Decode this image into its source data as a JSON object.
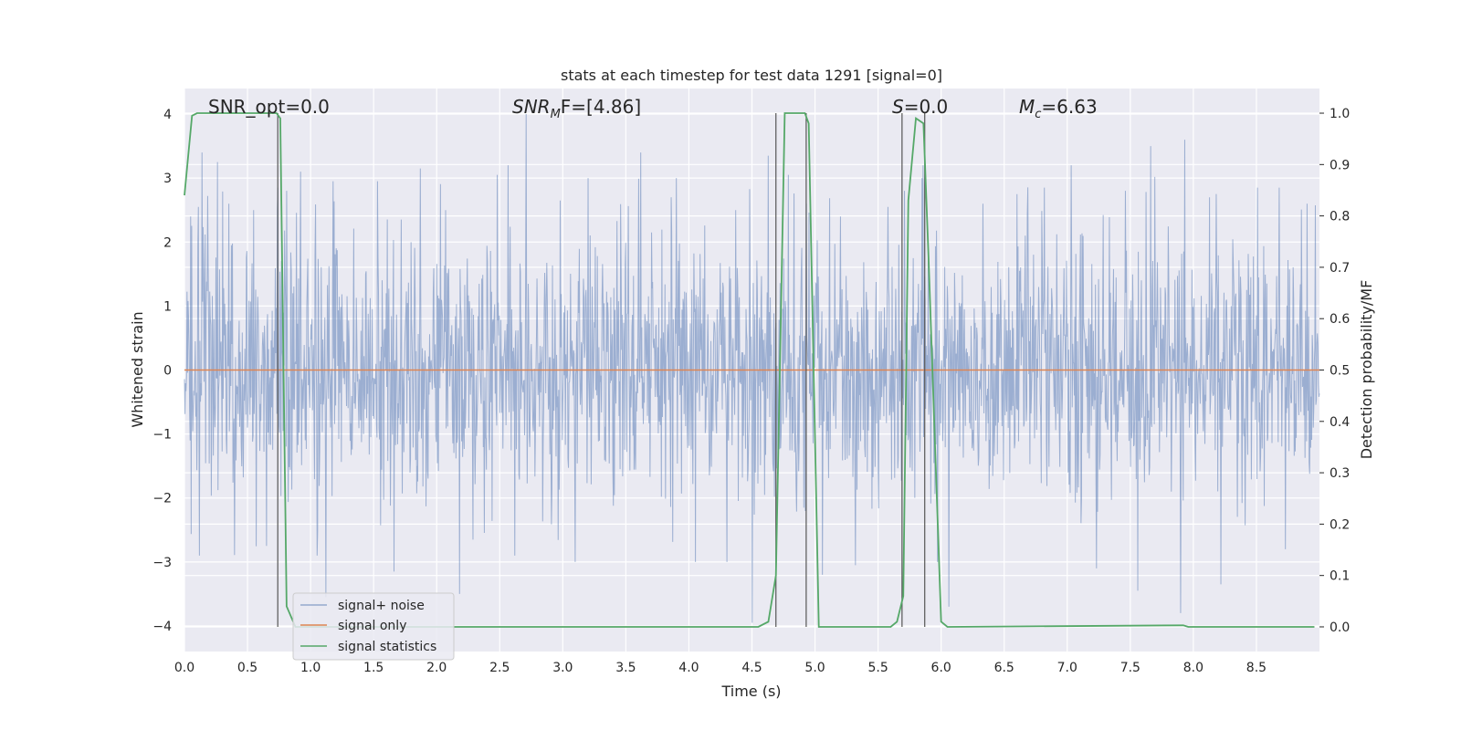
{
  "chart_data": {
    "type": "line",
    "title": "stats at each timestep for test data 1291 [signal=0]",
    "xlabel": "Time (s)",
    "ylabel": "Whitened strain",
    "y2label": "Detection probability/MF",
    "xlim": [
      0.0,
      9.0
    ],
    "ylim": [
      -4.4,
      4.4
    ],
    "y2lim": [
      -0.048,
      1.048
    ],
    "x_ticks": [
      0.0,
      0.5,
      1.0,
      1.5,
      2.0,
      2.5,
      3.0,
      3.5,
      4.0,
      4.5,
      5.0,
      5.5,
      6.0,
      6.5,
      7.0,
      7.5,
      8.0,
      8.5
    ],
    "x_tick_labels": [
      "0.0",
      "0.5",
      "1.0",
      "1.5",
      "2.0",
      "2.5",
      "3.0",
      "3.5",
      "4.0",
      "4.5",
      "5.0",
      "5.5",
      "6.0",
      "6.5",
      "7.0",
      "7.5",
      "8.0",
      "8.5"
    ],
    "y_ticks": [
      4,
      3,
      2,
      1,
      0,
      -1,
      -2,
      -3,
      -4
    ],
    "y_tick_labels": [
      "4",
      "3",
      "2",
      "1",
      "0",
      "−1",
      "−2",
      "−3",
      "−4"
    ],
    "y2_ticks": [
      1.0,
      0.9,
      0.8,
      0.7,
      0.6,
      0.5,
      0.4,
      0.3,
      0.2,
      0.1,
      0.0
    ],
    "y2_tick_labels": [
      "1.0",
      "0.9",
      "0.8",
      "0.7",
      "0.6",
      "0.5",
      "0.4",
      "0.3",
      "0.2",
      "0.1",
      "0.0"
    ],
    "grid": true,
    "legend_position": "lower-left",
    "legend": [
      {
        "label": "signal+ noise",
        "color": "#4c72b0"
      },
      {
        "label": "signal only",
        "color": "#dd8452"
      },
      {
        "label": "signal statistics",
        "color": "#55a868"
      }
    ],
    "annotations": [
      {
        "text": "SNR_opt=0.0",
        "x": 0.2,
        "y": 4.05
      },
      {
        "text_main": "SNR",
        "text_sub": "M",
        "text_rest": "F=[4.86]",
        "x": 2.6,
        "y": 4.05
      },
      {
        "text_main": "S",
        "text_rest": "=0.0",
        "x": 5.6,
        "y": 4.05
      },
      {
        "text_main": "M",
        "text_sub": "c",
        "text_rest": "=6.63",
        "x": 6.6,
        "y": 4.05
      }
    ],
    "series": [
      {
        "name": "signal+ noise",
        "color": "#4c72b0",
        "axis": "left",
        "t_start": 0.0,
        "t_end": 9.0,
        "noise_std": 1.0,
        "peaks": [
          [
            0.05,
            2.4
          ],
          [
            0.11,
            2.55
          ],
          [
            0.14,
            3.4
          ],
          [
            0.26,
            3.25
          ],
          [
            0.12,
            -2.9
          ],
          [
            0.35,
            2.6
          ],
          [
            0.55,
            2.5
          ],
          [
            0.65,
            -2.75
          ],
          [
            0.74,
            2.85
          ],
          [
            0.81,
            2.8
          ],
          [
            0.92,
            3.1
          ],
          [
            1.12,
            -3.55
          ],
          [
            1.18,
            2.95
          ],
          [
            1.53,
            2.95
          ],
          [
            1.66,
            -3.15
          ],
          [
            1.87,
            3.15
          ],
          [
            2.07,
            2.5
          ],
          [
            2.18,
            -3.5
          ],
          [
            2.48,
            3.05
          ],
          [
            2.62,
            -2.9
          ],
          [
            2.71,
            4.0
          ],
          [
            2.98,
            2.65
          ],
          [
            3.1,
            -3.0
          ],
          [
            3.2,
            3.0
          ],
          [
            3.62,
            3.4
          ],
          [
            3.86,
            2.7
          ],
          [
            4.05,
            -3.0
          ],
          [
            4.3,
            -3.0
          ],
          [
            4.37,
            2.5
          ],
          [
            4.5,
            -3.95
          ],
          [
            4.63,
            3.35
          ],
          [
            4.79,
            3.05
          ],
          [
            4.93,
            2.6
          ],
          [
            5.32,
            -3.05
          ],
          [
            5.58,
            2.55
          ],
          [
            5.71,
            2.8
          ],
          [
            5.85,
            3.0
          ],
          [
            5.97,
            -3.0
          ],
          [
            6.06,
            -3.7
          ],
          [
            6.33,
            2.6
          ],
          [
            6.6,
            2.75
          ],
          [
            6.82,
            2.85
          ],
          [
            7.03,
            3.2
          ],
          [
            7.23,
            -3.1
          ],
          [
            7.46,
            2.8
          ],
          [
            7.56,
            -3.45
          ],
          [
            7.66,
            3.5
          ],
          [
            7.9,
            -3.8
          ],
          [
            7.93,
            3.6
          ],
          [
            8.13,
            2.7
          ],
          [
            8.22,
            -3.35
          ],
          [
            8.51,
            2.85
          ],
          [
            8.68,
            2.85
          ],
          [
            8.73,
            -2.8
          ],
          [
            8.9,
            2.6
          ],
          [
            5.2,
            2.4
          ],
          [
            1.05,
            -2.9
          ],
          [
            3.9,
            3.0
          ]
        ]
      },
      {
        "name": "signal only",
        "color": "#dd8452",
        "axis": "left",
        "x": [
          0.0,
          9.0
        ],
        "y": [
          0.0,
          0.0
        ]
      },
      {
        "name": "signal statistics",
        "color": "#55a868",
        "axis": "right",
        "x": [
          0.0,
          0.06,
          0.1,
          0.7,
          0.73,
          0.76,
          0.81,
          0.88,
          4.55,
          4.63,
          4.69,
          4.76,
          4.92,
          4.95,
          5.03,
          5.08,
          5.14,
          5.6,
          5.65,
          5.7,
          5.74,
          5.8,
          5.86,
          5.9,
          6.0,
          6.05,
          7.92,
          7.96,
          8.96
        ],
        "y": [
          0.84,
          0.995,
          1.0,
          1.0,
          1.0,
          0.99,
          0.04,
          0.0,
          0.0,
          0.01,
          0.1,
          1.0,
          1.0,
          0.98,
          0.0,
          0.0,
          0.0,
          0.0,
          0.01,
          0.06,
          0.83,
          0.99,
          0.98,
          0.72,
          0.01,
          0.0,
          0.003,
          0.0,
          0.0
        ]
      }
    ],
    "vertical_lines": [
      0.74,
      4.69,
      4.93,
      5.69,
      5.87
    ]
  }
}
